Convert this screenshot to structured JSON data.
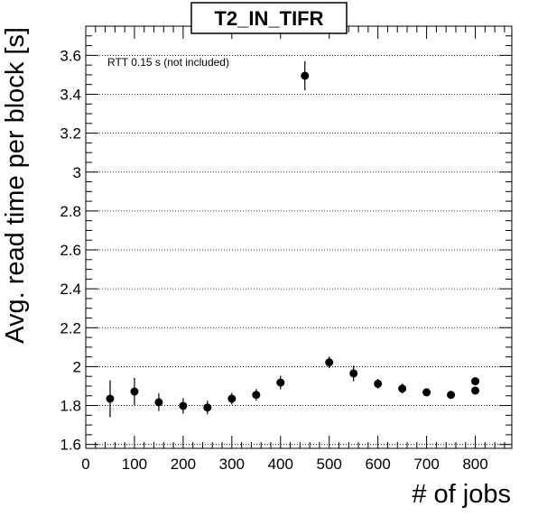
{
  "chart_data": {
    "type": "scatter",
    "title": "T2_IN_TIFR",
    "xlabel": "# of jobs",
    "ylabel": "Avg. read time per block [s]",
    "annotation": "RTT 0.15 s (not included)",
    "xlim": [
      0,
      875
    ],
    "ylim": [
      1.58,
      3.75
    ],
    "x_ticks": [
      0,
      100,
      200,
      300,
      400,
      500,
      600,
      700,
      800
    ],
    "y_ticks": [
      1.6,
      1.8,
      2,
      2.2,
      2.4,
      2.6,
      2.8,
      3,
      3.2,
      3.4,
      3.6
    ],
    "x_tick_labels": [
      "0",
      "100",
      "200",
      "300",
      "400",
      "500",
      "600",
      "700",
      "800"
    ],
    "y_tick_labels": [
      "1.6",
      "1.8",
      "2",
      "2.2",
      "2.4",
      "2.6",
      "2.8",
      "3",
      "3.2",
      "3.4",
      "3.6"
    ],
    "grid": {
      "x": false,
      "y": true
    },
    "series": [
      {
        "points": [
          {
            "x": 50,
            "y": 1.835,
            "err": 0.095
          },
          {
            "x": 100,
            "y": 1.872,
            "err": 0.07
          },
          {
            "x": 150,
            "y": 1.817,
            "err": 0.045
          },
          {
            "x": 200,
            "y": 1.798,
            "err": 0.04
          },
          {
            "x": 250,
            "y": 1.79,
            "err": 0.035
          },
          {
            "x": 300,
            "y": 1.835,
            "err": 0.03
          },
          {
            "x": 350,
            "y": 1.855,
            "err": 0.03
          },
          {
            "x": 400,
            "y": 1.918,
            "err": 0.035
          },
          {
            "x": 450,
            "y": 3.495,
            "err": 0.075
          },
          {
            "x": 500,
            "y": 2.022,
            "err": 0.03
          },
          {
            "x": 550,
            "y": 1.965,
            "err": 0.04
          },
          {
            "x": 600,
            "y": 1.912,
            "err": 0.025
          },
          {
            "x": 650,
            "y": 1.887,
            "err": 0.025
          },
          {
            "x": 700,
            "y": 1.868,
            "err": 0.02
          },
          {
            "x": 750,
            "y": 1.855,
            "err": 0.02
          },
          {
            "x": 800,
            "y": 1.925,
            "err": 0.02
          },
          {
            "x": 800,
            "y": 1.877,
            "err": 0.02
          }
        ]
      }
    ]
  }
}
